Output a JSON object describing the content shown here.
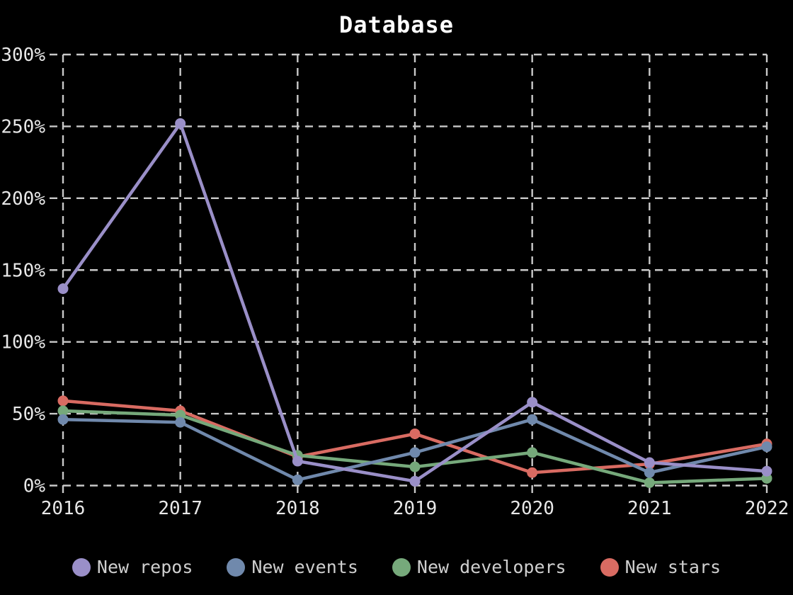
{
  "chart_data": {
    "type": "line",
    "title": "Database",
    "x": [
      "2016",
      "2017",
      "2018",
      "2019",
      "2020",
      "2021",
      "2022"
    ],
    "xlabel": "",
    "ylabel": "",
    "ylim": [
      0,
      300
    ],
    "yticks": [
      0,
      50,
      100,
      150,
      200,
      250,
      300
    ],
    "ytick_suffix": "%",
    "grid": "dashed",
    "legend_position": "bottom",
    "colors": {
      "background": "#000000",
      "grid": "#c9c9c9",
      "axis_text": "#e8e8e8",
      "legend_text": "#cfcfcf",
      "title_text": "#ffffff"
    },
    "series": [
      {
        "name": "New repos",
        "color": "#9a8fc8",
        "values": [
          137,
          252,
          17,
          3,
          58,
          16,
          10
        ]
      },
      {
        "name": "New events",
        "color": "#7089ac",
        "values": [
          46,
          44,
          4,
          23,
          46,
          9,
          27
        ]
      },
      {
        "name": "New developers",
        "color": "#76a97b",
        "values": [
          52,
          49,
          21,
          13,
          23,
          2,
          5
        ]
      },
      {
        "name": "New stars",
        "color": "#d96b62",
        "values": [
          59,
          52,
          20,
          36,
          9,
          15,
          29
        ]
      }
    ]
  }
}
